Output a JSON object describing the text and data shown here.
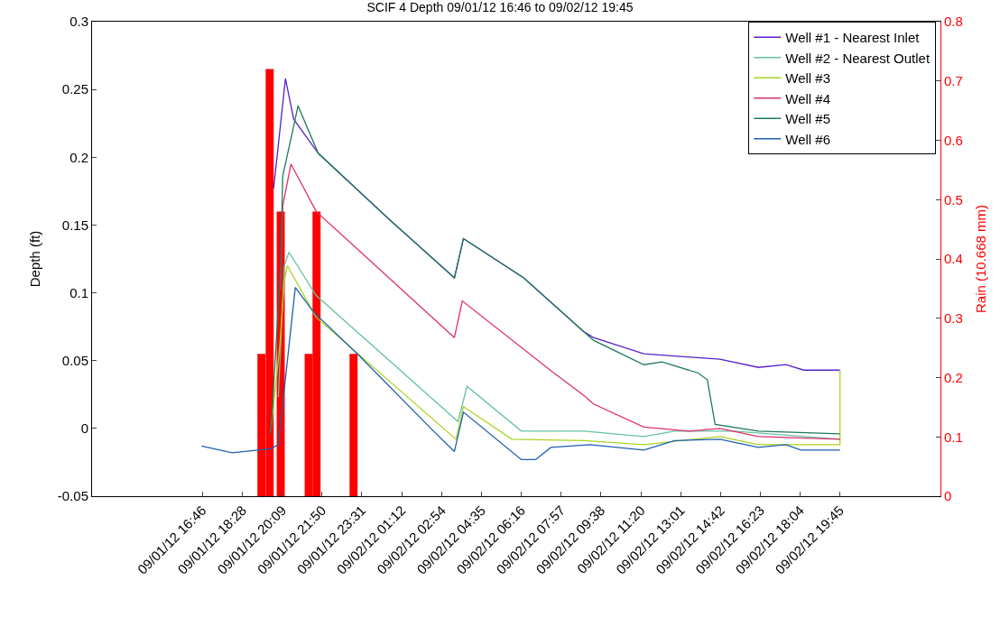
{
  "chart_data": {
    "type": "line",
    "title": "SCIF 4 Depth 09/01/12 16:46 to 09/02/12 19:45",
    "ylabel": "Depth (ft)",
    "y2label": "Rain (10.668 mm)",
    "xlim": [
      "--09-01T12:06",
      "--09-03T00:00"
    ],
    "xticks": [
      {
        "value": "--09-01T16:46",
        "label": "09/01/12 16:46"
      },
      {
        "value": "--09-01T18:28",
        "label": "09/01/12 18:28"
      },
      {
        "value": "--09-01T20:09",
        "label": "09/01/12 20:09"
      },
      {
        "value": "--09-01T21:50",
        "label": "09/01/12 21:50"
      },
      {
        "value": "--09-01T23:31",
        "label": "09/01/12 23:31"
      },
      {
        "value": "--09-02T01:12",
        "label": "09/02/12 01:12"
      },
      {
        "value": "--09-02T02:54",
        "label": "09/02/12 02:54"
      },
      {
        "value": "--09-02T04:35",
        "label": "09/02/12 04:35"
      },
      {
        "value": "--09-02T06:16",
        "label": "09/02/12 06:16"
      },
      {
        "value": "--09-02T07:57",
        "label": "09/02/12 07:57"
      },
      {
        "value": "--09-02T09:38",
        "label": "09/02/12 09:38"
      },
      {
        "value": "--09-02T11:20",
        "label": "09/02/12 11:20"
      },
      {
        "value": "--09-02T13:01",
        "label": "09/02/12 13:01"
      },
      {
        "value": "--09-02T14:42",
        "label": "09/02/12 14:42"
      },
      {
        "value": "--09-02T16:23",
        "label": "09/02/12 16:23"
      },
      {
        "value": "--09-02T18:04",
        "label": "09/02/12 18:04"
      },
      {
        "value": "--09-02T19:45",
        "label": "09/02/12 19:45"
      }
    ],
    "ylim": [
      -0.05,
      0.3
    ],
    "yticks": [
      -0.05,
      0,
      0.05,
      0.1,
      0.15,
      0.2,
      0.25,
      0.3
    ],
    "y2lim": [
      0,
      0.8
    ],
    "y2ticks": [
      0,
      0.1,
      0.2,
      0.3,
      0.4,
      0.5,
      0.6,
      0.7,
      0.8
    ],
    "legend": "top right",
    "marker": "none",
    "line_style": "solid",
    "series": [
      {
        "name": "Well #1 - Nearest Inlet",
        "color": "#5a1fc8",
        "x": [
          "--09-01T19:47",
          "--09-01T20:17",
          "--09-01T20:38",
          "--09-01T21:40",
          "--09-02T00:45",
          "--09-02T03:26",
          "--09-02T03:49",
          "--09-02T06:22",
          "--09-02T08:56",
          "--09-02T09:19",
          "--09-02T11:27",
          "--09-02T14:40",
          "--09-02T16:18",
          "--09-02T17:27",
          "--09-02T18:13",
          "--09-02T19:45"
        ],
        "values": [
          0.177,
          0.258,
          0.228,
          0.203,
          0.153,
          0.111,
          0.14,
          0.111,
          0.071,
          0.067,
          0.055,
          0.051,
          0.045,
          0.047,
          0.043,
          0.043
        ]
      },
      {
        "name": "Well #2 - Nearest Outlet",
        "color": "#66c29a",
        "x": [
          "--09-01T19:59",
          "--09-01T20:14",
          "--09-01T20:26",
          "--09-01T21:35",
          "--09-02T03:35",
          "--09-02T03:58",
          "--09-02T06:16",
          "--09-02T08:56",
          "--09-02T11:27",
          "--09-02T12:45",
          "--09-02T15:16",
          "--09-02T19:45"
        ],
        "values": [
          0.023,
          0.12,
          0.13,
          0.098,
          0.005,
          0.031,
          -0.002,
          -0.002,
          -0.006,
          -0.002,
          -0.002,
          -0.008
        ]
      },
      {
        "name": "Well #3",
        "color": "#a8d420",
        "x": [
          "--09-01T19:40",
          "--09-01T20:03",
          "--09-01T20:14",
          "--09-01T20:22",
          "--09-01T21:35",
          "--09-02T03:30",
          "--09-02T03:49",
          "--09-02T05:52",
          "--09-02T08:56",
          "--09-02T11:27",
          "--09-02T14:40",
          "--09-02T16:18",
          "--09-02T19:45",
          "--09-02T19:45"
        ],
        "values": [
          -0.002,
          0.062,
          0.109,
          0.12,
          0.082,
          -0.008,
          0.016,
          -0.008,
          -0.009,
          -0.012,
          -0.006,
          -0.012,
          -0.012,
          0.043
        ]
      },
      {
        "name": "Well #4",
        "color": "#e0306a",
        "x": [
          "--09-01T20:05",
          "--09-01T20:10",
          "--09-01T20:31",
          "--09-01T21:35",
          "--09-02T03:26",
          "--09-02T03:46",
          "--09-02T07:38",
          "--09-02T08:56",
          "--09-02T09:19",
          "--09-02T11:27",
          "--09-02T13:22",
          "--09-02T14:40",
          "--09-02T16:18",
          "--09-02T19:45"
        ],
        "values": [
          0.102,
          0.164,
          0.195,
          0.16,
          0.067,
          0.094,
          0.041,
          0.024,
          0.018,
          0.001,
          -0.002,
          0.0,
          -0.006,
          -0.008
        ]
      },
      {
        "name": "Well #5",
        "color": "#1e7a5a",
        "x": [
          "--09-01T19:40",
          "--09-01T20:05",
          "--09-01T20:10",
          "--09-01T20:38",
          "--09-01T20:49",
          "--09-01T21:40",
          "--09-02T00:45",
          "--09-02T03:26",
          "--09-02T03:49",
          "--09-02T06:22",
          "--09-02T08:56",
          "--09-02T09:19",
          "--09-02T11:27",
          "--09-02T12:13",
          "--09-02T13:44",
          "--09-02T14:08",
          "--09-02T14:28",
          "--09-02T16:18",
          "--09-02T19:45"
        ],
        "values": [
          -0.004,
          0.12,
          0.186,
          0.223,
          0.238,
          0.203,
          0.153,
          0.111,
          0.14,
          0.111,
          0.071,
          0.065,
          0.047,
          0.049,
          0.041,
          0.036,
          0.003,
          -0.002,
          -0.004
        ]
      },
      {
        "name": "Well #6",
        "color": "#1f5fae",
        "x": [
          "--09-01T16:44",
          "--09-01T18:02",
          "--09-01T19:40",
          "--09-01T19:59",
          "--09-01T20:42",
          "--09-01T21:28",
          "--09-01T23:23",
          "--09-02T02:33",
          "--09-02T03:26",
          "--09-02T03:49",
          "--09-02T06:16",
          "--09-02T06:52",
          "--09-02T07:31",
          "--09-02T09:10",
          "--09-02T11:27",
          "--09-02T12:45",
          "--09-02T14:40",
          "--09-02T16:18",
          "--09-02T17:27",
          "--09-02T18:06",
          "--09-02T19:45"
        ],
        "values": [
          -0.013,
          -0.018,
          -0.015,
          -0.012,
          0.104,
          0.086,
          0.054,
          -0.002,
          -0.017,
          0.012,
          -0.023,
          -0.023,
          -0.014,
          -0.012,
          -0.016,
          -0.009,
          -0.008,
          -0.014,
          -0.012,
          -0.016,
          -0.016
        ]
      },
      {
        "type": "bar",
        "axis": "y2",
        "color": "#ff0000",
        "x": [
          "--09-01T19:16",
          "--09-01T19:37",
          "--09-01T20:05",
          "--09-01T21:16",
          "--09-01T21:36",
          "--09-01T23:10"
        ],
        "values": [
          0.24,
          0.72,
          0.48,
          0.24,
          0.48,
          0.24
        ]
      }
    ]
  }
}
